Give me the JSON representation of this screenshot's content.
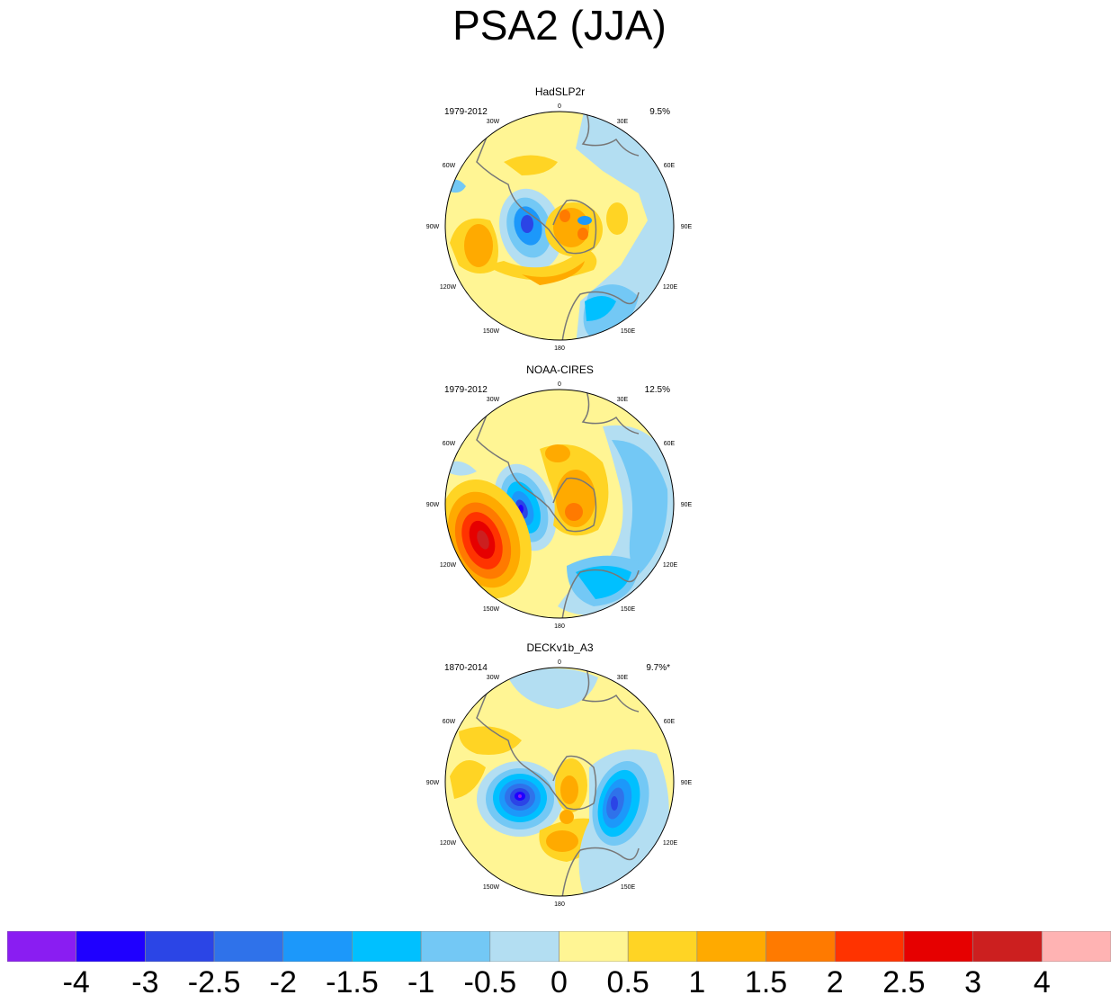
{
  "title": "PSA2 (JJA)",
  "panels": [
    {
      "name": "HadSLP2r",
      "period": "1979-2012",
      "percent": "9.5%"
    },
    {
      "name": "NOAA-CIRES",
      "period": "1979-2012",
      "percent": "12.5%"
    },
    {
      "name": "DECKv1b_A3",
      "period": "1870-2014",
      "percent": "9.7%*"
    }
  ],
  "longitude_labels": [
    "0",
    "30E",
    "60E",
    "90E",
    "120E",
    "150E",
    "180",
    "150W",
    "120W",
    "90W",
    "60W",
    "30W"
  ],
  "colorbar": {
    "colors": [
      "#8a1df2",
      "#1f00ff",
      "#2b45e6",
      "#2f72ea",
      "#1c98fa",
      "#00c0ff",
      "#73c8f5",
      "#b3def2",
      "#fff594",
      "#ffd424",
      "#ffaa00",
      "#ff7a00",
      "#ff3300",
      "#e60000",
      "#cc1f1f",
      "#ffb3b3"
    ],
    "labels": [
      "-4",
      "-3",
      "-2.5",
      "-2",
      "-1.5",
      "-1",
      "-0.5",
      "0",
      "0.5",
      "1",
      "1.5",
      "2",
      "2.5",
      "3",
      "4"
    ]
  },
  "anomaly_colors": {
    "bg": "#fff594",
    "n05": "#b3def2",
    "n1": "#73c8f5",
    "n15": "#00c0ff",
    "n2": "#1c98fa",
    "n25": "#2f72ea",
    "n3": "#2b45e6",
    "n4": "#1f00ff",
    "p1": "#ffd424",
    "p15": "#ffaa00",
    "p2": "#ff7a00",
    "p25": "#ff3300",
    "p3": "#e60000",
    "p4": "#cc1f1f"
  }
}
